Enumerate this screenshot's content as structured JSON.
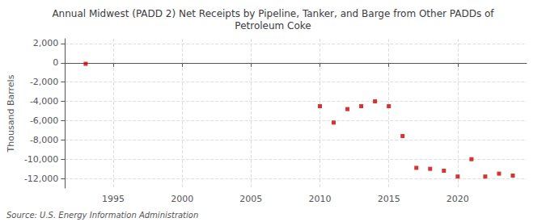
{
  "chart_data": {
    "type": "scatter",
    "title": "Annual Midwest (PADD 2) Net Receipts by Pipeline, Tanker, and Barge from Other PADDs of\nPetroleum Coke",
    "ylabel": "Thousand Barrels",
    "annotations": [
      "Source: U.S. Energy Information Administration"
    ],
    "x": [
      1993,
      2010,
      2011,
      2012,
      2013,
      2014,
      2015,
      2016,
      2017,
      2018,
      2019,
      2020,
      2021,
      2022,
      2023,
      2024
    ],
    "values": [
      -100,
      -4500,
      -6200,
      -4800,
      -4500,
      -4000,
      -4500,
      -7600,
      -10900,
      -11000,
      -11200,
      -11800,
      -10000,
      -11800,
      -11500,
      -11700
    ],
    "color": "#cc0000",
    "marker": "square",
    "xlim": [
      1991.5,
      2025
    ],
    "xticks": [
      1995,
      2000,
      2005,
      2010,
      2015,
      2020
    ],
    "ylim": [
      -13000,
      2500
    ],
    "yticks": [
      {
        "value": 2000,
        "label": "2,000"
      },
      0,
      {
        "value": -2000,
        "label": "-2,000"
      },
      {
        "value": -4000,
        "label": "-4,000"
      },
      {
        "value": -6000,
        "label": "-6,000"
      },
      {
        "value": -8000,
        "label": "-8,000"
      },
      {
        "value": -10000,
        "label": "-10,000"
      },
      {
        "value": -12000,
        "label": "-12,000"
      }
    ],
    "grid": true
  }
}
